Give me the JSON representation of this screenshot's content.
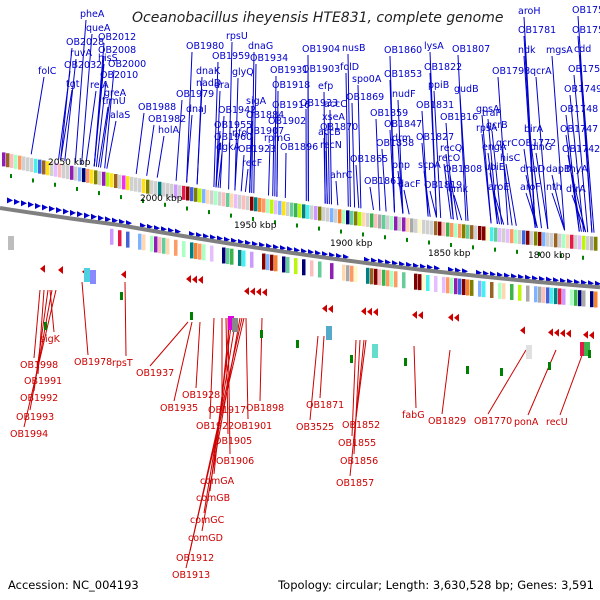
{
  "title": "Oceanobacillus iheyensis HTE831, complete genome",
  "footer": {
    "accession": "Accession: NC_004193",
    "topology": "Topology: circular; Length: 3,630,528 bp; Genes: 3,591"
  },
  "scale_ticks": [
    "2050 kbp",
    "2000 kbp",
    "1950 kbp",
    "1900 kbp",
    "1850 kbp",
    "1800 kbp"
  ],
  "colors": {
    "forward_strand": "#0000cc",
    "reverse_strand": "#cc0000",
    "backbone": "#808080",
    "rna": "#008000"
  },
  "top_labels": [
    "pheA",
    "queA",
    "folC",
    "ruvA",
    "OB2028",
    "OB2032",
    "tgt",
    "OB2012",
    "hisS",
    "relA",
    "OB2008",
    "OB2000",
    "OB2010",
    "trmU",
    "greA",
    "alaS",
    "OB1980",
    "rpsU",
    "OB1959",
    "dnaG",
    "OB1934",
    "dnaK",
    "glyQ",
    "nadD",
    "OB1979",
    "dnaJ",
    "OB1988",
    "OB1982",
    "holA",
    "dra",
    "OB1955",
    "OB1942",
    "OB1918",
    "OB1931",
    "OB1904",
    "nusB",
    "OB1903",
    "folD",
    "spo0A",
    "OB1860",
    "OB1853",
    "lysA",
    "OB1822",
    "OB1807",
    "aroH",
    "ndk",
    "mgsA",
    "OB1781",
    "OB1753",
    "OB1752",
    "cdd",
    "OB1750",
    "OB1749",
    "OB1748",
    "OB1747",
    "OB1742",
    "thyA",
    "dfrA",
    "efp",
    "accC",
    "xseA",
    "accB",
    "recN",
    "OB1870",
    "ahrC",
    "OB1865",
    "OB1861",
    "OB1869",
    "OB1859",
    "OB1858",
    "nudF",
    "OB1847",
    "drm",
    "pnp",
    "dacF",
    "OB1831",
    "OB1827",
    "OB1819",
    "ppiB",
    "gudB",
    "OB1798",
    "qcrA",
    "OB1816",
    "OB1808",
    "cmk",
    "traP",
    "qcrB",
    "qcrC",
    "OB1772",
    "hisC",
    "birA",
    "rpsA",
    "gpsA",
    "engA",
    "ubiE",
    "aroE",
    "aroF",
    "dinG",
    "dnaD",
    "dapB",
    "nth",
    "recQ",
    "scpA",
    "recO",
    "OB1916",
    "OB1902",
    "rpmG",
    "OB1907",
    "OB1923",
    "OB1896",
    "OB1884",
    "recF",
    "OB1933",
    "sigA",
    "nfo",
    "dgkA",
    "OB1960"
  ],
  "bottom_labels": [
    "sigK",
    "OB1998",
    "OB1991",
    "OB1992",
    "OB1993",
    "OB1994",
    "OB1978",
    "rpsT",
    "OB1937",
    "OB1928",
    "OB1935",
    "OB1917",
    "OB1922",
    "OB1901",
    "OB1905",
    "OB1906",
    "comGA",
    "comGB",
    "comGC",
    "comGD",
    "OB1912",
    "OB1913",
    "OB1898",
    "OB1871",
    "OB3525",
    "OB1852",
    "OB1855",
    "OB1856",
    "OB1857",
    "fabG",
    "OB1829",
    "OB1770",
    "ponA",
    "recU"
  ]
}
